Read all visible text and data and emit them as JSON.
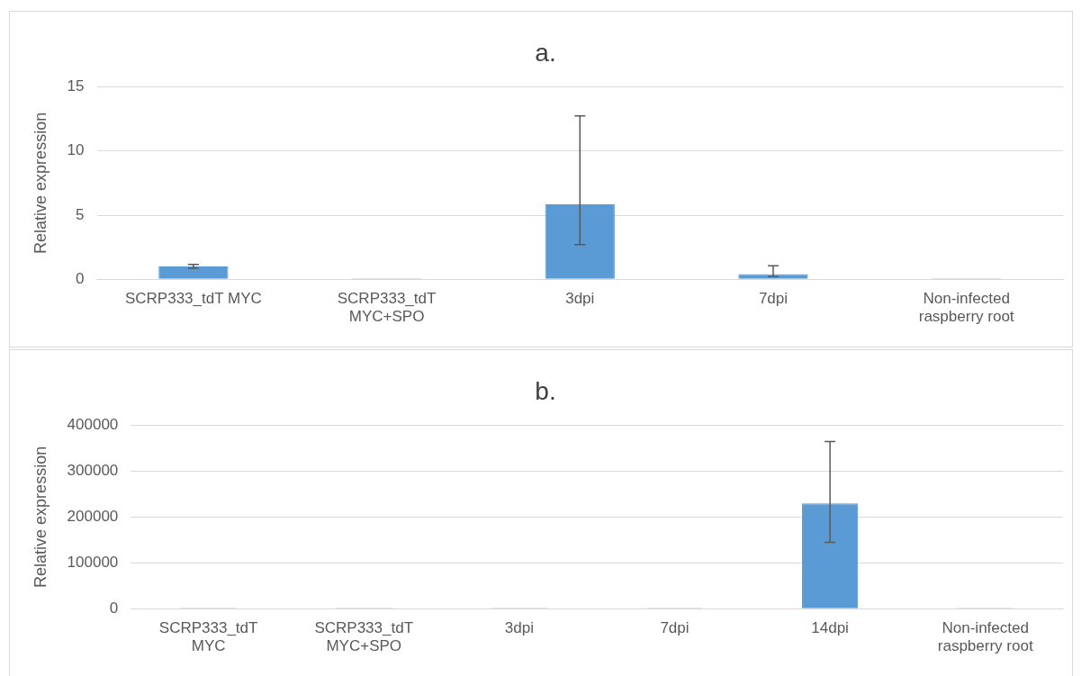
{
  "chart_data": [
    {
      "type": "bar",
      "title": "a.",
      "ylabel": "Relative expression",
      "categories": [
        "SCRP333_tdT MYC",
        "SCRP333_tdT MYC+SPO",
        "3dpi",
        "7dpi",
        "Non-infected raspberry root"
      ],
      "values": [
        1.0,
        0,
        5.85,
        0.4,
        0
      ],
      "errors": [
        [
          0.85,
          1.15
        ],
        null,
        [
          2.7,
          12.75
        ],
        [
          0.2,
          1.05
        ],
        null
      ],
      "color": "#5b9bd5",
      "ylim": [
        0,
        15
      ],
      "yticks": [
        0,
        5,
        10,
        15
      ],
      "grid": "y",
      "legend": false
    },
    {
      "type": "bar",
      "title": "b.",
      "ylabel": "Relative expression",
      "categories": [
        "SCRP333_tdT MYC",
        "SCRP333_tdT MYC+SPO",
        "3dpi",
        "7dpi",
        "14dpi",
        "Non-infected raspberry root"
      ],
      "values": [
        0,
        0,
        0,
        0,
        230000,
        0
      ],
      "errors": [
        null,
        null,
        null,
        null,
        [
          145000,
          365000
        ],
        null
      ],
      "color": "#5b9bd5",
      "ylim": [
        0,
        400000
      ],
      "yticks": [
        0,
        100000,
        200000,
        300000,
        400000
      ],
      "grid": "y",
      "legend": false
    }
  ]
}
